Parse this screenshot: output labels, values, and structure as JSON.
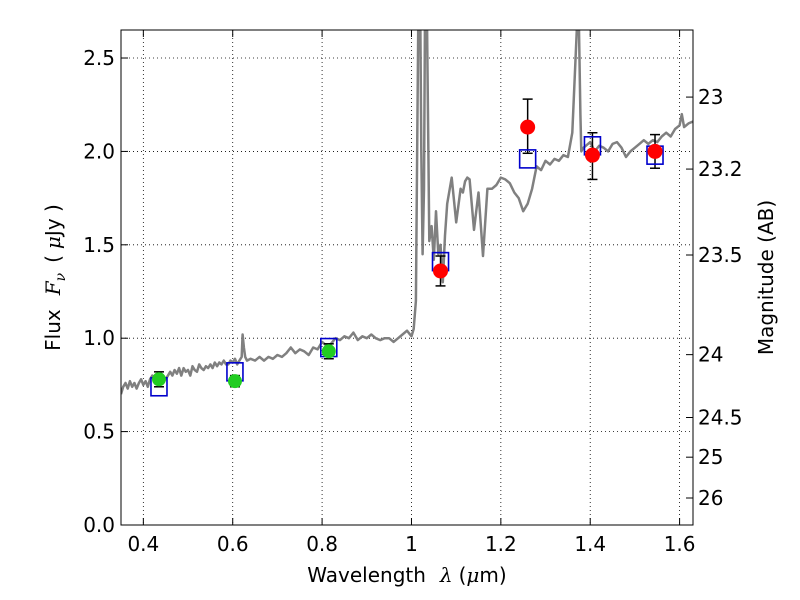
{
  "chart_data": {
    "type": "scatter",
    "title": "",
    "xlabel": {
      "text": "Wavelength",
      "symbol": "λ",
      "unit_open": "(",
      "unit_mu": "μ",
      "unit_rest": "m)"
    },
    "ylabel": {
      "text": "Flux",
      "symbol": "F",
      "sub": "ν",
      "unit_open": "(",
      "unit_mu": "μ",
      "unit_rest": "Jy )"
    },
    "y2label": "Magnitude (AB)",
    "xlim": [
      0.35,
      1.63
    ],
    "ylim": [
      0.0,
      2.65
    ],
    "xticks": [
      0.4,
      0.6,
      0.8,
      1.0,
      1.2,
      1.4,
      1.6
    ],
    "xtick_labels": [
      "0.4",
      "0.6",
      "0.8",
      "1",
      "1.2",
      "1.4",
      "1.6"
    ],
    "yticks": [
      0.0,
      0.5,
      1.0,
      1.5,
      2.0,
      2.5
    ],
    "ytick_labels": [
      "0.0",
      "0.5",
      "1.0",
      "1.5",
      "2.0",
      "2.5"
    ],
    "y2ticks": [
      23,
      23.2,
      23.5,
      24,
      24.5,
      25,
      26
    ],
    "y2tick_labels": [
      "23",
      "23.2",
      "23.5",
      "24",
      "24.5",
      "25",
      "26"
    ],
    "grid": true,
    "colors": {
      "model": "#808080",
      "model_photometry": "#0000cc",
      "optical_points": "#22cc22",
      "nir_points": "#ff0000",
      "errorbar": "#000000"
    },
    "series": [
      {
        "kind": "line",
        "x": [
          0.35,
          0.355,
          0.36,
          0.365,
          0.37,
          0.375,
          0.38,
          0.385,
          0.39,
          0.395,
          0.4,
          0.405,
          0.41,
          0.415,
          0.42,
          0.425,
          0.43,
          0.435,
          0.44,
          0.445,
          0.45,
          0.455,
          0.46,
          0.465,
          0.47,
          0.475,
          0.48,
          0.485,
          0.49,
          0.495,
          0.5,
          0.505,
          0.51,
          0.515,
          0.52,
          0.525,
          0.53,
          0.535,
          0.54,
          0.545,
          0.55,
          0.555,
          0.56,
          0.565,
          0.57,
          0.575,
          0.58,
          0.585,
          0.59,
          0.595,
          0.6,
          0.605,
          0.61,
          0.615,
          0.62,
          0.622,
          0.625,
          0.628,
          0.632,
          0.64,
          0.65,
          0.66,
          0.67,
          0.68,
          0.69,
          0.7,
          0.71,
          0.72,
          0.73,
          0.74,
          0.75,
          0.76,
          0.77,
          0.78,
          0.79,
          0.8,
          0.81,
          0.82,
          0.83,
          0.84,
          0.85,
          0.86,
          0.87,
          0.88,
          0.89,
          0.9,
          0.91,
          0.92,
          0.93,
          0.94,
          0.95,
          0.96,
          0.97,
          0.98,
          0.99,
          1.0,
          1.005,
          1.01,
          1.015,
          1.018,
          1.02,
          1.022,
          1.025,
          1.028,
          1.03,
          1.035,
          1.04,
          1.045,
          1.05,
          1.055,
          1.06,
          1.065,
          1.07,
          1.075,
          1.08,
          1.09,
          1.1,
          1.11,
          1.115,
          1.12,
          1.125,
          1.13,
          1.14,
          1.15,
          1.16,
          1.17,
          1.18,
          1.19,
          1.2,
          1.21,
          1.22,
          1.23,
          1.24,
          1.25,
          1.26,
          1.27,
          1.28,
          1.29,
          1.3,
          1.31,
          1.32,
          1.33,
          1.34,
          1.35,
          1.36,
          1.37,
          1.372,
          1.375,
          1.378,
          1.38,
          1.385,
          1.39,
          1.4,
          1.41,
          1.42,
          1.43,
          1.44,
          1.45,
          1.46,
          1.47,
          1.48,
          1.49,
          1.5,
          1.51,
          1.52,
          1.53,
          1.54,
          1.55,
          1.56,
          1.57,
          1.58,
          1.59,
          1.6,
          1.605,
          1.61,
          1.62,
          1.63
        ],
        "y": [
          0.7,
          0.74,
          0.76,
          0.73,
          0.77,
          0.74,
          0.76,
          0.73,
          0.76,
          0.78,
          0.75,
          0.77,
          0.74,
          0.78,
          0.8,
          0.77,
          0.8,
          0.78,
          0.81,
          0.79,
          0.78,
          0.8,
          0.82,
          0.8,
          0.83,
          0.81,
          0.84,
          0.8,
          0.84,
          0.82,
          0.83,
          0.8,
          0.85,
          0.83,
          0.82,
          0.86,
          0.84,
          0.83,
          0.85,
          0.84,
          0.86,
          0.84,
          0.87,
          0.85,
          0.87,
          0.86,
          0.88,
          0.86,
          0.86,
          0.88,
          0.87,
          0.89,
          0.86,
          0.88,
          0.9,
          1.02,
          0.95,
          0.9,
          0.88,
          0.89,
          0.88,
          0.9,
          0.88,
          0.9,
          0.89,
          0.91,
          0.9,
          0.92,
          0.95,
          0.92,
          0.94,
          0.93,
          0.91,
          0.95,
          0.94,
          0.98,
          0.96,
          0.97,
          1.0,
          0.99,
          1.01,
          1.0,
          1.03,
          0.99,
          1.01,
          1.0,
          1.02,
          1.0,
          0.99,
          1.0,
          1.0,
          0.98,
          1.0,
          1.02,
          1.04,
          1.01,
          1.05,
          1.2,
          2.65,
          2.65,
          2.65,
          2.0,
          1.45,
          1.8,
          2.65,
          2.65,
          1.52,
          1.6,
          1.42,
          1.68,
          1.45,
          1.5,
          1.3,
          1.55,
          1.72,
          1.86,
          1.62,
          1.8,
          1.78,
          1.84,
          1.86,
          1.85,
          1.58,
          1.78,
          1.44,
          1.8,
          1.8,
          1.82,
          1.86,
          1.85,
          1.83,
          1.78,
          1.75,
          1.68,
          1.72,
          1.8,
          1.92,
          1.9,
          1.95,
          1.93,
          1.96,
          1.95,
          1.98,
          1.97,
          2.1,
          2.65,
          2.65,
          2.65,
          2.2,
          2.0,
          2.02,
          2.03,
          2.05,
          2.0,
          2.03,
          2.02,
          2.0,
          2.04,
          2.05,
          2.02,
          1.97,
          2.0,
          2.02,
          2.04,
          2.06,
          2.04,
          2.06,
          2.05,
          2.08,
          2.1,
          2.08,
          2.12,
          2.14,
          2.2,
          2.13,
          2.15,
          2.16
        ]
      },
      {
        "kind": "model_photometry",
        "marker": "open-square",
        "x": [
          0.435,
          0.605,
          0.815,
          1.065,
          1.26,
          1.405,
          1.545
        ],
        "y": [
          0.74,
          0.82,
          0.95,
          1.41,
          1.96,
          2.03,
          1.98
        ]
      },
      {
        "kind": "points",
        "group": "optical",
        "x": [
          0.435,
          0.605,
          0.815
        ],
        "y": [
          0.78,
          0.77,
          0.93
        ],
        "yerr": [
          0.04,
          0.03,
          0.04
        ]
      },
      {
        "kind": "points",
        "group": "nir",
        "x": [
          1.065,
          1.26,
          1.405,
          1.545
        ],
        "y": [
          1.36,
          2.13,
          1.98,
          2.0
        ],
        "yerr_low": [
          0.08,
          0.14,
          0.13,
          0.09
        ],
        "yerr_high": [
          0.08,
          0.15,
          0.12,
          0.09
        ]
      }
    ]
  }
}
